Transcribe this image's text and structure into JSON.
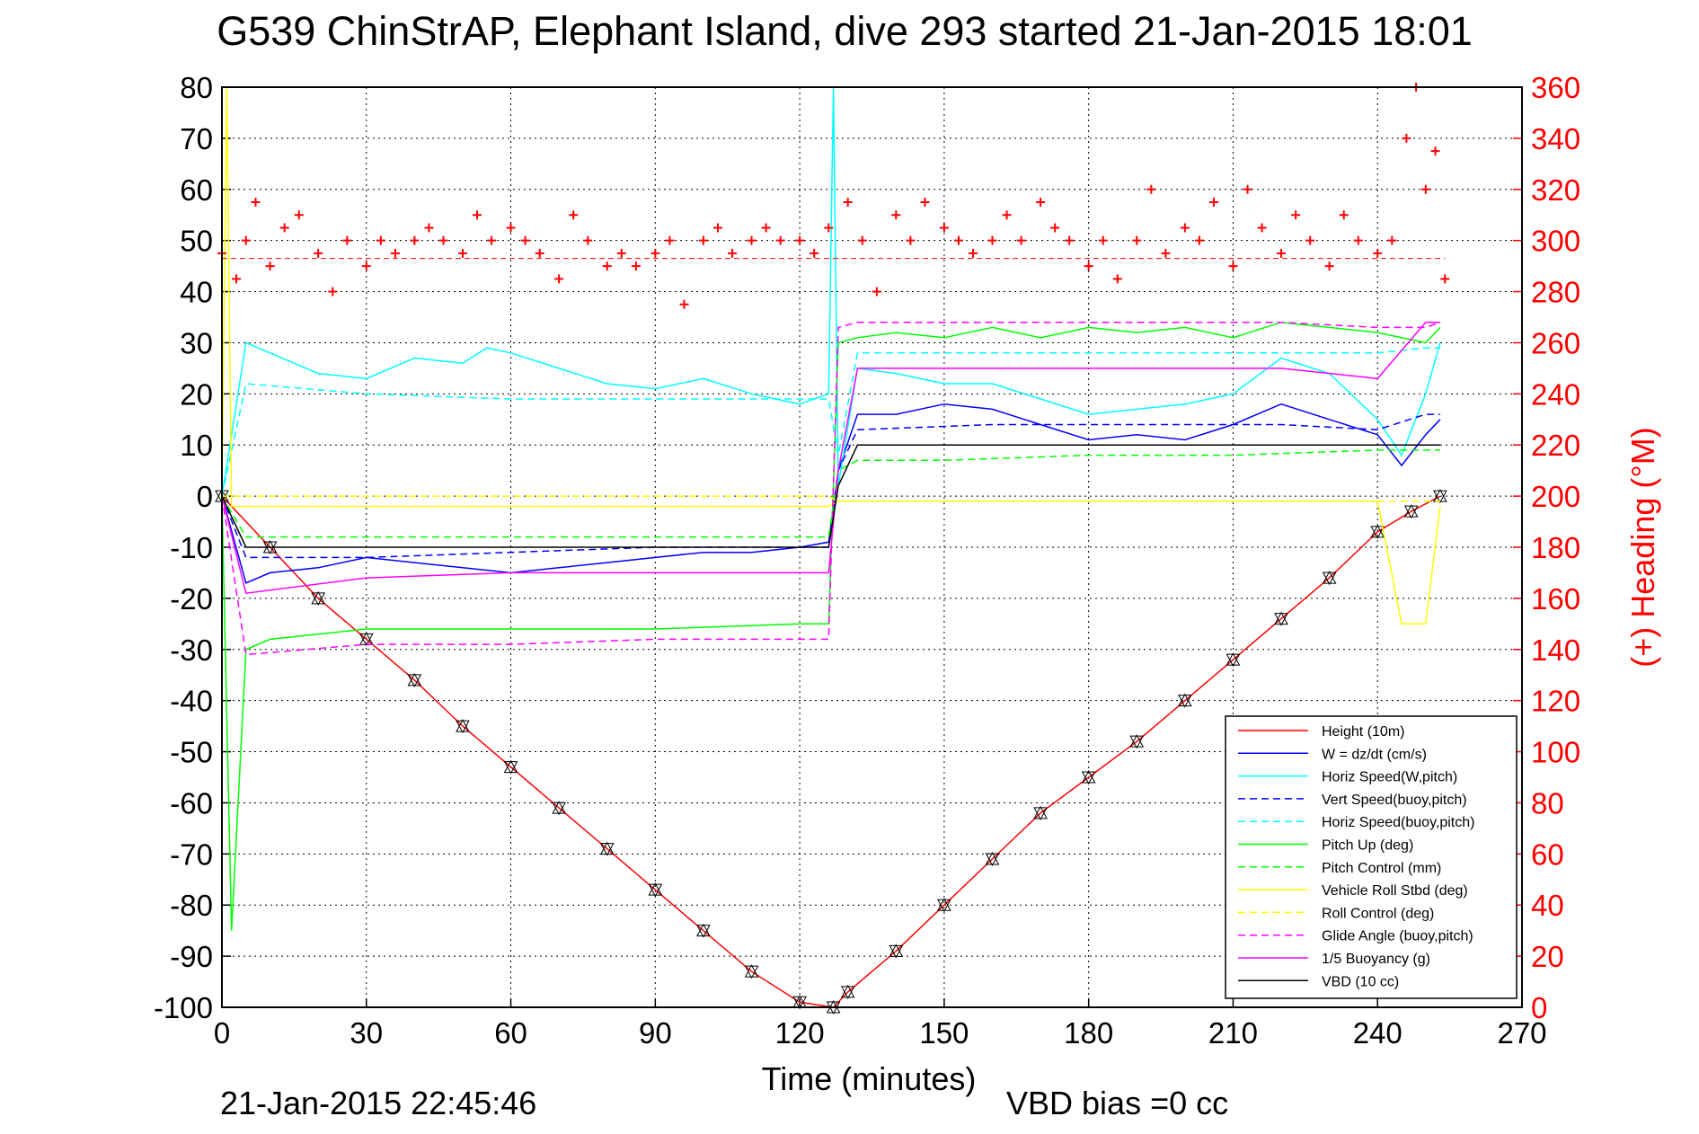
{
  "title": "G539 ChinStrAP, Elephant Island, dive 293 started 21-Jan-2015 18:01",
  "footer": {
    "timestamp": "21-Jan-2015 22:45:46",
    "vbd_bias": "VBD bias =0 cc"
  },
  "chart_data": {
    "type": "line",
    "title": "G539 ChinStrAP, Elephant Island, dive 293 started 21-Jan-2015 18:01",
    "xlabel": "Time (minutes)",
    "ylabel": "",
    "y2label": "(+) Heading (°M)",
    "xlim": [
      0,
      270
    ],
    "ylim": [
      -100,
      80
    ],
    "y2lim": [
      0,
      360
    ],
    "xticks": [
      "0",
      "30",
      "60",
      "90",
      "120",
      "150",
      "180",
      "210",
      "240",
      "270"
    ],
    "yticks": [
      "80",
      "70",
      "60",
      "50",
      "40",
      "30",
      "20",
      "10",
      "0",
      "-10",
      "-20",
      "-30",
      "-40",
      "-50",
      "-60",
      "-70",
      "-80",
      "-90",
      "-100"
    ],
    "y2ticks": [
      "360",
      "340",
      "320",
      "300",
      "280",
      "260",
      "240",
      "220",
      "200",
      "180",
      "160",
      "140",
      "120",
      "100",
      "80",
      "60",
      "40",
      "20",
      "0"
    ],
    "grid": true,
    "legend_position": "bottom-right",
    "colors": {
      "height": "#ff0000",
      "w": "#0000ff",
      "horiz": "#00ffff",
      "pitch": "#00ff00",
      "roll": "#ffff00",
      "glide": "#ff00ff",
      "vbd": "#000000",
      "heading": "#ff0000"
    },
    "series": [
      {
        "name": "Height (10m)",
        "color": "#ff0000",
        "dash": false,
        "x": [
          0,
          10,
          20,
          30,
          40,
          50,
          60,
          70,
          80,
          90,
          100,
          110,
          120,
          127,
          130,
          140,
          150,
          160,
          170,
          180,
          190,
          200,
          210,
          220,
          230,
          240,
          247,
          253
        ],
        "y": [
          0,
          -10,
          -20,
          -28,
          -36,
          -45,
          -53,
          -61,
          -69,
          -77,
          -85,
          -93,
          -99,
          -100,
          -97,
          -89,
          -80,
          -71,
          -62,
          -55,
          -48,
          -40,
          -32,
          -24,
          -16,
          -7,
          -3,
          0
        ]
      },
      {
        "name": "W = dz/dt (cm/s)",
        "color": "#0000ff",
        "dash": false,
        "x": [
          0,
          5,
          10,
          20,
          30,
          40,
          50,
          60,
          70,
          80,
          90,
          100,
          110,
          120,
          126,
          128,
          132,
          140,
          150,
          160,
          170,
          180,
          190,
          200,
          210,
          220,
          230,
          240,
          245,
          250,
          253
        ],
        "y": [
          0,
          -17,
          -15,
          -14,
          -12,
          -13,
          -14,
          -15,
          -14,
          -13,
          -12,
          -11,
          -11,
          -10,
          -9,
          5,
          16,
          16,
          18,
          17,
          14,
          11,
          12,
          11,
          14,
          18,
          15,
          12,
          6,
          12,
          15
        ]
      },
      {
        "name": "Horiz Speed(W,pitch)",
        "color": "#00ffff",
        "dash": false,
        "x": [
          0,
          5,
          10,
          20,
          30,
          40,
          50,
          55,
          60,
          70,
          80,
          90,
          100,
          110,
          120,
          126,
          127,
          128,
          132,
          140,
          150,
          160,
          170,
          180,
          190,
          200,
          210,
          220,
          230,
          240,
          245,
          250,
          253
        ],
        "y": [
          0,
          30,
          28,
          24,
          23,
          27,
          26,
          29,
          28,
          25,
          22,
          21,
          23,
          20,
          18,
          20,
          80,
          2,
          25,
          24,
          22,
          22,
          19,
          16,
          17,
          18,
          20,
          27,
          24,
          15,
          8,
          20,
          30
        ]
      },
      {
        "name": "Vert Speed(buoy,pitch)",
        "color": "#0000ff",
        "dash": true,
        "x": [
          0,
          5,
          30,
          60,
          90,
          120,
          126,
          128,
          132,
          160,
          190,
          220,
          240,
          250,
          253
        ],
        "y": [
          0,
          -12,
          -12,
          -11,
          -10,
          -10,
          -10,
          5,
          13,
          14,
          14,
          14,
          13,
          16,
          16
        ]
      },
      {
        "name": "Horiz Speed(buoy,pitch)",
        "color": "#00ffff",
        "dash": true,
        "x": [
          0,
          5,
          30,
          60,
          90,
          120,
          126,
          128,
          132,
          160,
          190,
          220,
          240,
          250,
          253
        ],
        "y": [
          0,
          22,
          20,
          19,
          19,
          19,
          19,
          8,
          28,
          28,
          28,
          28,
          28,
          29,
          29
        ]
      },
      {
        "name": "Pitch Up (deg)",
        "color": "#00ff00",
        "dash": false,
        "x": [
          0,
          2,
          5,
          10,
          20,
          30,
          60,
          90,
          120,
          126,
          128,
          132,
          140,
          150,
          160,
          170,
          180,
          190,
          200,
          210,
          220,
          230,
          240,
          250,
          253
        ],
        "y": [
          0,
          -85,
          -30,
          -28,
          -27,
          -26,
          -26,
          -26,
          -25,
          -25,
          30,
          31,
          32,
          31,
          33,
          31,
          33,
          32,
          33,
          31,
          34,
          33,
          32,
          30,
          33
        ]
      },
      {
        "name": "Pitch Control (mm)",
        "color": "#00ff00",
        "dash": true,
        "x": [
          0,
          5,
          30,
          60,
          90,
          120,
          126,
          128,
          132,
          150,
          180,
          210,
          240,
          250,
          253
        ],
        "y": [
          0,
          -8,
          -8,
          -8,
          -8,
          -8,
          -8,
          5,
          7,
          7,
          8,
          8,
          9,
          9,
          9
        ]
      },
      {
        "name": "Vehicle Roll Stbd (deg)",
        "color": "#ffff00",
        "dash": false,
        "x": [
          0,
          1,
          2,
          5,
          30,
          60,
          90,
          120,
          126,
          128,
          150,
          180,
          210,
          240,
          245,
          250,
          253
        ],
        "y": [
          0,
          80,
          -2,
          -2,
          -2,
          -2,
          -2,
          -2,
          -2,
          -1,
          -1,
          -1,
          -1,
          -1,
          -25,
          -25,
          -2
        ]
      },
      {
        "name": "Roll Control (deg)",
        "color": "#ffff00",
        "dash": true,
        "x": [
          0,
          5,
          30,
          60,
          90,
          120,
          126,
          128,
          150,
          180,
          210,
          240,
          253
        ],
        "y": [
          0,
          0,
          0,
          0,
          0,
          0,
          0,
          -1,
          -1,
          -1,
          -1,
          -1,
          -1
        ]
      },
      {
        "name": "Glide Angle (buoy,pitch)",
        "color": "#ff00ff",
        "dash": true,
        "x": [
          0,
          5,
          30,
          60,
          90,
          120,
          126,
          128,
          132,
          160,
          190,
          220,
          240,
          250,
          253
        ],
        "y": [
          0,
          -31,
          -29,
          -29,
          -28,
          -28,
          -28,
          33,
          34,
          34,
          34,
          34,
          33,
          33,
          34
        ]
      },
      {
        "name": "1/5 Buoyancy (g)",
        "color": "#ff00ff",
        "dash": false,
        "x": [
          0,
          5,
          30,
          60,
          90,
          120,
          126,
          128,
          132,
          160,
          190,
          220,
          240,
          250,
          253
        ],
        "y": [
          0,
          -19,
          -16,
          -15,
          -15,
          -15,
          -15,
          5,
          25,
          25,
          25,
          25,
          23,
          34,
          34
        ]
      },
      {
        "name": "VBD (10 cc)",
        "color": "#000000",
        "dash": false,
        "x": [
          0,
          5,
          30,
          60,
          90,
          120,
          126,
          128,
          132,
          160,
          190,
          220,
          240,
          250,
          253
        ],
        "y": [
          0,
          -10,
          -10,
          -10,
          -10,
          -10,
          -10,
          2,
          10,
          10,
          10,
          10,
          10,
          10,
          10
        ]
      },
      {
        "name": "Heading",
        "color": "#ff0000",
        "axis": "right",
        "marker": "+",
        "x": [
          0,
          3,
          5,
          7,
          10,
          13,
          16,
          20,
          23,
          26,
          30,
          33,
          36,
          40,
          43,
          46,
          50,
          53,
          56,
          60,
          63,
          66,
          70,
          73,
          76,
          80,
          83,
          86,
          90,
          93,
          96,
          100,
          103,
          106,
          110,
          113,
          116,
          120,
          123,
          126,
          130,
          133,
          136,
          140,
          143,
          146,
          150,
          153,
          156,
          160,
          163,
          166,
          170,
          173,
          176,
          180,
          183,
          186,
          190,
          193,
          196,
          200,
          203,
          206,
          210,
          213,
          216,
          220,
          223,
          226,
          230,
          233,
          236,
          240,
          243,
          246,
          248,
          250,
          252,
          254
        ],
        "y": [
          295,
          285,
          300,
          315,
          290,
          305,
          310,
          295,
          280,
          300,
          290,
          300,
          295,
          300,
          305,
          300,
          295,
          310,
          300,
          305,
          300,
          295,
          285,
          310,
          300,
          290,
          295,
          290,
          295,
          300,
          275,
          300,
          305,
          295,
          300,
          305,
          300,
          300,
          295,
          305,
          315,
          300,
          280,
          310,
          300,
          315,
          305,
          300,
          295,
          300,
          310,
          300,
          315,
          305,
          300,
          290,
          300,
          285,
          300,
          320,
          295,
          305,
          300,
          315,
          290,
          320,
          305,
          295,
          310,
          300,
          290,
          310,
          300,
          295,
          300,
          340,
          360,
          320,
          335,
          285
        ]
      }
    ],
    "legend": [
      "Height (10m)",
      "W = dz/dt (cm/s)",
      "Horiz Speed(W,pitch)",
      "Vert Speed(buoy,pitch)",
      "Horiz Speed(buoy,pitch)",
      "Pitch Up (deg)",
      "Pitch Control (mm)",
      "Vehicle Roll Stbd (deg)",
      "Roll Control (deg)",
      "Glide Angle (buoy,pitch)",
      "1/5 Buoyancy (g)",
      "VBD (10 cc)"
    ]
  }
}
